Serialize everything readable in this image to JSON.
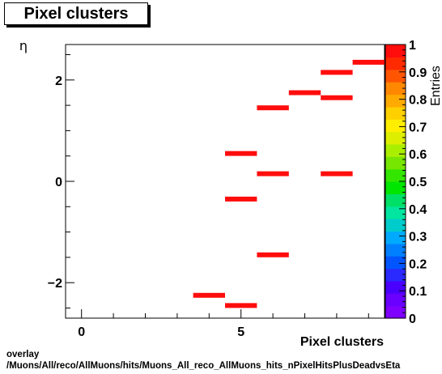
{
  "chart_data": {
    "type": "heatmap",
    "title": "Pixel clusters",
    "xlabel": "Pixel clusters",
    "ylabel": "η",
    "zlabel": "Entries",
    "xlim": [
      -0.5,
      9.5
    ],
    "ylim": [
      -2.7,
      2.7
    ],
    "x_ticks": [
      0,
      5
    ],
    "y_ticks": [
      -2,
      0,
      2
    ],
    "z_ticks": [
      0,
      0.1,
      0.2,
      0.3,
      0.4,
      0.5,
      0.6,
      0.7,
      0.8,
      0.9,
      1
    ],
    "z_tick_labels": [
      "0",
      "0.1",
      "0.2",
      "0.3",
      "0.4",
      "0.5",
      "0.6",
      "0.7",
      "0.8",
      "0.9",
      "1"
    ],
    "zlim": [
      0,
      1
    ],
    "bar_color": "#ff0d0d",
    "cells": [
      {
        "x": 4,
        "y": -2.25,
        "value": 1
      },
      {
        "x": 5,
        "y": -2.45,
        "value": 1
      },
      {
        "x": 5,
        "y": -0.35,
        "value": 1
      },
      {
        "x": 5,
        "y": 0.55,
        "value": 1
      },
      {
        "x": 6,
        "y": -1.45,
        "value": 1
      },
      {
        "x": 6,
        "y": 0.15,
        "value": 1
      },
      {
        "x": 6,
        "y": 1.45,
        "value": 1
      },
      {
        "x": 7,
        "y": 1.75,
        "value": 1
      },
      {
        "x": 8,
        "y": 0.15,
        "value": 1
      },
      {
        "x": 8,
        "y": 1.65,
        "value": 1
      },
      {
        "x": 8,
        "y": 2.15,
        "value": 1
      },
      {
        "x": 9,
        "y": 2.35,
        "value": 1
      }
    ]
  },
  "footer": {
    "line1": "overlay",
    "line2": "/Muons/All/reco/AllMuons/hits/Muons_All_reco_AllMuons_hits_nPixelHitsPlusDeadvsEta"
  }
}
